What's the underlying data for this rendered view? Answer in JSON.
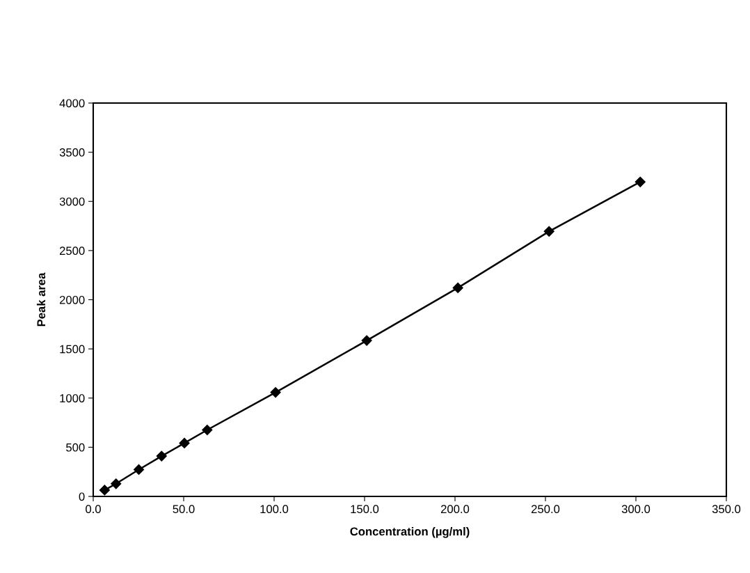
{
  "chart_data": {
    "type": "line",
    "xlabel": "Concentration (µg/ml)",
    "ylabel": "Peak area",
    "x": [
      6.3,
      12.6,
      25.2,
      37.8,
      50.4,
      63.0,
      100.8,
      151.2,
      201.6,
      252.0,
      302.4
    ],
    "series": [
      {
        "color": "#000000",
        "values": [
          64,
          129,
          273,
          410,
          542,
          676,
          1058,
          1585,
          2121,
          2695,
          3198
        ]
      }
    ],
    "marker": "diamond",
    "line_style": "solid",
    "grid": false,
    "legend": false,
    "xlim": [
      0,
      350
    ],
    "xticks": [
      {
        "value": 0,
        "label": "0.0"
      },
      {
        "value": 50,
        "label": "50.0"
      },
      {
        "value": 100,
        "label": "100.0"
      },
      {
        "value": 150,
        "label": "150.0"
      },
      {
        "value": 200,
        "label": "200.0"
      },
      {
        "value": 250,
        "label": "250.0"
      },
      {
        "value": 300,
        "label": "300.0"
      },
      {
        "value": 350,
        "label": "350.0"
      }
    ],
    "ylim": [
      0,
      4000
    ],
    "yticks": [
      0,
      500,
      1000,
      1500,
      2000,
      2500,
      3000,
      3500,
      4000
    ]
  }
}
